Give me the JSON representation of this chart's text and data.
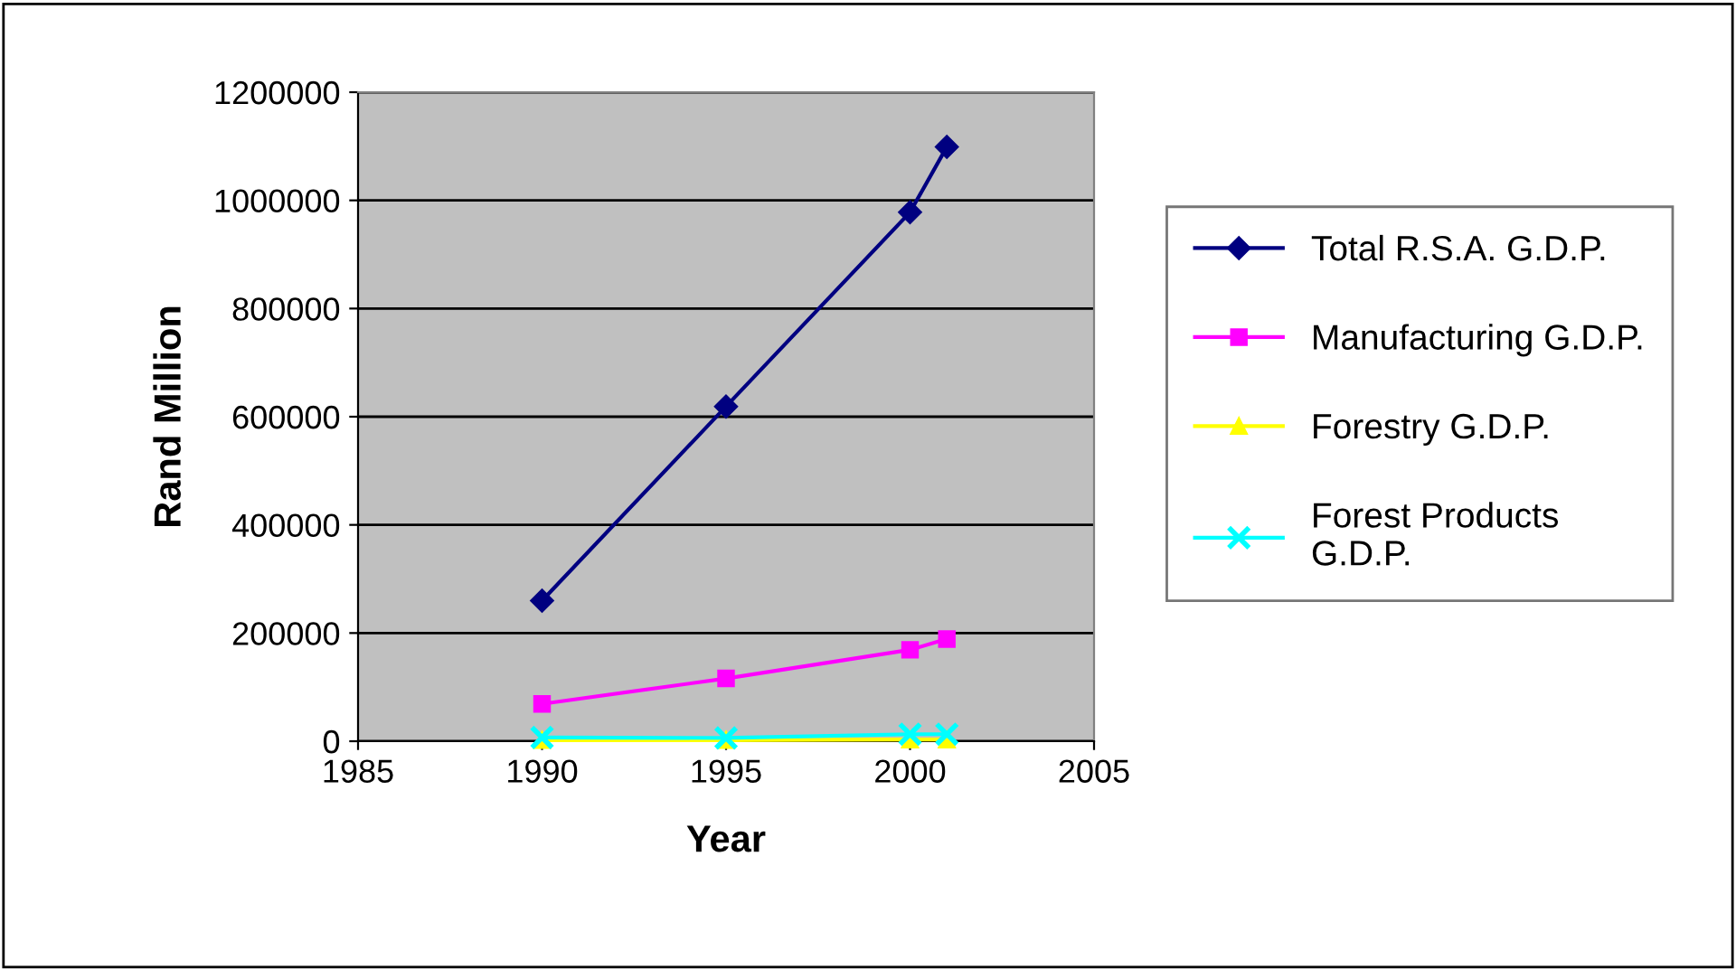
{
  "chart_data": {
    "type": "line",
    "xlabel": "Year",
    "ylabel": "Rand Million",
    "x": [
      1990,
      1995,
      2000,
      2001
    ],
    "series": [
      {
        "name": "Total R.S.A. G.D.P.",
        "color": "#000080",
        "marker": "diamond",
        "values": [
          260000,
          619000,
          978000,
          1099000
        ]
      },
      {
        "name": "Manufacturing G.D.P.",
        "color": "#ff00ff",
        "marker": "square",
        "values": [
          69000,
          116000,
          169000,
          189000
        ]
      },
      {
        "name": "Forestry G.D.P.",
        "color": "#ffff00",
        "marker": "triangle",
        "values": [
          2000,
          2000,
          3000,
          3000
        ]
      },
      {
        "name": "Forest Products\nG.D.P.",
        "color": "#00ffff",
        "marker": "cross",
        "values": [
          7000,
          6000,
          13000,
          13000
        ]
      }
    ],
    "xlim": [
      1985,
      2005
    ],
    "xticks": [
      1985,
      1990,
      1995,
      2000,
      2005
    ],
    "ylim": [
      0,
      1200000
    ],
    "yticks": [
      0,
      200000,
      400000,
      600000,
      800000,
      1000000,
      1200000
    ],
    "grid": "y",
    "legend": "right"
  }
}
